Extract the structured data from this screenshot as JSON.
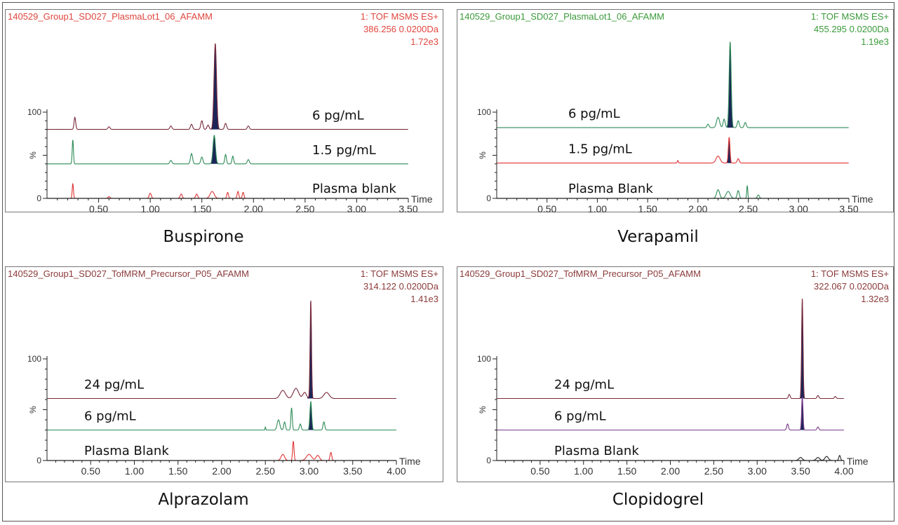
{
  "chart_data": [
    {
      "type": "line",
      "compound": "Buspirone",
      "file": "140529_Group1_SD027_PlasmaLot1_06_AFAMM",
      "acq": [
        "1: TOF MSMS ES+",
        "386.256 0.0200Da",
        "1.72e3"
      ],
      "header_color": "#e0463e",
      "ylabel": "%",
      "yticks": [
        0,
        100
      ],
      "xlabel": "Time",
      "xlim": [
        0,
        3.5
      ],
      "xticks": [
        "0.50",
        "1.00",
        "1.50",
        "2.00",
        "2.50",
        "3.00",
        "3.50"
      ],
      "traces": [
        {
          "label": "6 pg/mL",
          "color": "#7a2b3c",
          "baseline": 80,
          "fill": [
            1.59,
            1.67
          ],
          "peaks": [
            [
              1.63,
              100,
              0.012
            ],
            [
              0.27,
              14,
              0.008
            ],
            [
              1.4,
              6,
              0.01
            ],
            [
              1.5,
              10,
              0.01
            ],
            [
              1.73,
              7,
              0.01
            ],
            [
              1.2,
              4,
              0.01
            ],
            [
              0.6,
              3,
              0.01
            ],
            [
              1.95,
              4,
              0.01
            ],
            [
              1.56,
              5,
              0.01
            ]
          ]
        },
        {
          "label": "1.5 pg/mL",
          "color": "#2e8b57",
          "baseline": 40,
          "fill": [
            1.59,
            1.66
          ],
          "peaks": [
            [
              1.62,
              33,
              0.012
            ],
            [
              0.25,
              28,
              0.006
            ],
            [
              1.4,
              12,
              0.01
            ],
            [
              1.5,
              8,
              0.01
            ],
            [
              1.73,
              11,
              0.008
            ],
            [
              1.8,
              9,
              0.008
            ],
            [
              1.95,
              5,
              0.01
            ],
            [
              1.2,
              4,
              0.01
            ]
          ]
        },
        {
          "label": "Plasma blank",
          "color": "#e03535",
          "baseline": 0,
          "peaks": [
            [
              0.25,
              17,
              0.006
            ],
            [
              1.0,
              6,
              0.01
            ],
            [
              1.3,
              5,
              0.01
            ],
            [
              1.6,
              8,
              0.02
            ],
            [
              1.75,
              7,
              0.008
            ],
            [
              1.85,
              8,
              0.008
            ],
            [
              1.9,
              7,
              0.008
            ],
            [
              1.45,
              5,
              0.01
            ],
            [
              0.6,
              2,
              0.01
            ]
          ]
        }
      ]
    },
    {
      "type": "line",
      "compound": "Verapamil",
      "file": "140529_Group1_SD027_PlasmaLot1_06_AFAMM",
      "acq": [
        "1: TOF MSMS ES+",
        "455.295 0.0200Da",
        "1.19e3"
      ],
      "header_color": "#3a9a3a",
      "ylabel": "%",
      "yticks": [
        0,
        100
      ],
      "xlabel": "Time",
      "xlim": [
        0,
        3.5
      ],
      "xticks": [
        "0.50",
        "1.00",
        "1.50",
        "2.00",
        "2.50",
        "3.00",
        "3.50"
      ],
      "traces": [
        {
          "label": "6 pg/mL",
          "color": "#2e8b57",
          "baseline": 82,
          "fill": [
            2.29,
            2.35
          ],
          "peaks": [
            [
              2.32,
              100,
              0.01
            ],
            [
              2.2,
              12,
              0.015
            ],
            [
              2.26,
              10,
              0.01
            ],
            [
              2.4,
              8,
              0.01
            ],
            [
              2.47,
              6,
              0.01
            ],
            [
              2.1,
              4,
              0.01
            ]
          ]
        },
        {
          "label": "1.5 pg/mL",
          "color": "#e03535",
          "baseline": 41,
          "fill": [
            2.29,
            2.33
          ],
          "peaks": [
            [
              2.31,
              30,
              0.008
            ],
            [
              2.2,
              8,
              0.02
            ],
            [
              2.4,
              5,
              0.01
            ],
            [
              1.8,
              3,
              0.005
            ]
          ]
        },
        {
          "label": "Plasma Blank",
          "color": "#2e8b57",
          "baseline": 0,
          "peaks": [
            [
              2.2,
              10,
              0.015
            ],
            [
              2.3,
              8,
              0.02
            ],
            [
              2.4,
              9,
              0.01
            ],
            [
              2.49,
              15,
              0.005
            ],
            [
              2.6,
              4,
              0.01
            ]
          ]
        }
      ]
    },
    {
      "type": "line",
      "compound": "Alprazolam",
      "file": "140529_Group1_SD027_TofMRM_Precursor_P05_AFAMM",
      "acq": [
        "1: TOF MSMS ES+",
        "314.122 0.0200Da",
        "1.41e3"
      ],
      "header_color": "#8b3a3a",
      "ylabel": "%",
      "yticks": [
        0,
        100
      ],
      "xlabel": "Time",
      "xlim": [
        0,
        4.0
      ],
      "xticks": [
        "0.50",
        "1.00",
        "1.50",
        "2.00",
        "2.50",
        "3.00",
        "3.50",
        "4.00"
      ],
      "traces": [
        {
          "label": "24 pg/mL",
          "color": "#7a2b3c",
          "baseline": 61,
          "fill": [
            2.98,
            3.07
          ],
          "peaks": [
            [
              3.02,
              97,
              0.008
            ],
            [
              2.7,
              8,
              0.03
            ],
            [
              2.85,
              10,
              0.03
            ],
            [
              3.2,
              6,
              0.03
            ],
            [
              2.95,
              6,
              0.02
            ]
          ]
        },
        {
          "label": "6 pg/mL",
          "color": "#2e8b57",
          "baseline": 30,
          "fill": [
            2.98,
            3.06
          ],
          "peaks": [
            [
              3.02,
              28,
              0.01
            ],
            [
              2.8,
              22,
              0.008
            ],
            [
              2.65,
              10,
              0.015
            ],
            [
              2.72,
              8,
              0.01
            ],
            [
              3.17,
              8,
              0.01
            ],
            [
              2.9,
              6,
              0.01
            ],
            [
              2.5,
              3,
              0.004
            ]
          ]
        },
        {
          "label": "Plasma Blank",
          "color": "#e03535",
          "baseline": 0,
          "peaks": [
            [
              2.82,
              19,
              0.008
            ],
            [
              2.7,
              6,
              0.02
            ],
            [
              3.0,
              6,
              0.03
            ],
            [
              3.25,
              8,
              0.01
            ],
            [
              3.1,
              5,
              0.02
            ]
          ]
        }
      ]
    },
    {
      "type": "line",
      "compound": "Clopidogrel",
      "file": "140529_Group1_SD027_TofMRM_Precursor_P05_AFAMM",
      "acq": [
        "1: TOF MSMS ES+",
        "322.067 0.0200Da",
        "1.32e3"
      ],
      "header_color": "#8b3a3a",
      "ylabel": "%",
      "yticks": [
        0,
        100
      ],
      "xlabel": "Time",
      "xlim": [
        0,
        4.0
      ],
      "xticks": [
        "0.50",
        "1.00",
        "1.50",
        "2.00",
        "2.50",
        "3.00",
        "3.50",
        "4.00"
      ],
      "traces": [
        {
          "label": "24 pg/mL",
          "color": "#7a2b3c",
          "baseline": 61,
          "fill": [
            3.49,
            3.55
          ],
          "peaks": [
            [
              3.52,
              99,
              0.008
            ],
            [
              3.37,
              4,
              0.01
            ],
            [
              3.7,
              3,
              0.01
            ],
            [
              3.9,
              2,
              0.01
            ]
          ]
        },
        {
          "label": "6 pg/mL",
          "color": "#7a3a8a",
          "baseline": 30,
          "fill": [
            3.49,
            3.55
          ],
          "peaks": [
            [
              3.52,
              33,
              0.008
            ],
            [
              3.35,
              6,
              0.01
            ],
            [
              3.7,
              3,
              0.01
            ]
          ]
        },
        {
          "label": "Plasma Blank",
          "color": "#222222",
          "baseline": 0,
          "peaks": [
            [
              3.5,
              3,
              0.02
            ],
            [
              3.8,
              4,
              0.02
            ],
            [
              3.95,
              5,
              0.01
            ],
            [
              3.7,
              3,
              0.02
            ]
          ]
        }
      ]
    }
  ],
  "fill_color": "#1c2658"
}
